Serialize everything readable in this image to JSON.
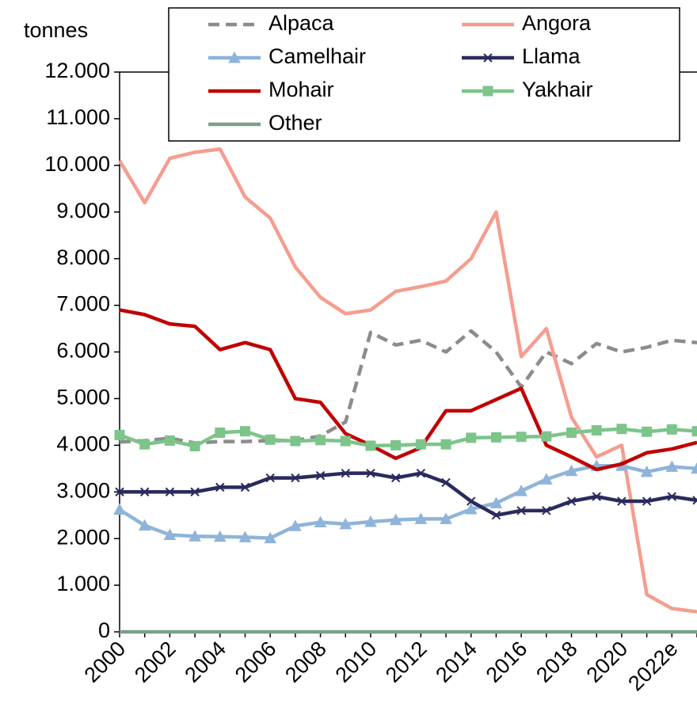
{
  "chart_data": {
    "type": "line",
    "y_label": "tonnes",
    "categories": [
      "2000",
      null,
      "2002",
      null,
      "2004",
      null,
      "2006",
      null,
      "2008",
      null,
      "2010",
      null,
      "2012",
      null,
      "2014",
      null,
      "2016",
      null,
      "2018",
      null,
      "2020",
      null,
      "2022e",
      null
    ],
    "ylim": [
      0,
      12000
    ],
    "yticks": [
      0,
      {
        "value": 1000,
        "label": "1.000"
      },
      {
        "value": 2000,
        "label": "2.000"
      },
      {
        "value": 3000,
        "label": "3.000"
      },
      {
        "value": 4000,
        "label": "4.000"
      },
      {
        "value": 5000,
        "label": "5.000"
      },
      {
        "value": 6000,
        "label": "6.000"
      },
      {
        "value": 7000,
        "label": "7.000"
      },
      {
        "value": 8000,
        "label": "8.000"
      },
      {
        "value": 9000,
        "label": "9.000"
      },
      {
        "value": 10000,
        "label": "10.000"
      },
      {
        "value": 11000,
        "label": "11.000"
      },
      {
        "value": 12000,
        "label": "12.000"
      }
    ],
    "grid": false,
    "legend": "top",
    "series": [
      {
        "name": "Alpaca",
        "color": "#8c8c8c",
        "dash": true,
        "marker": "none",
        "values": [
          4070,
          4100,
          4150,
          4050,
          4080,
          4080,
          4100,
          4100,
          4200,
          4500,
          6420,
          6150,
          6250,
          6000,
          6450,
          6000,
          5250,
          6000,
          5750,
          6180,
          6000,
          6100,
          6250,
          6200
        ]
      },
      {
        "name": "Angora",
        "color": "#f59d8f",
        "dash": false,
        "marker": "none",
        "values": [
          10100,
          9200,
          10150,
          10280,
          10350,
          9320,
          8870,
          7820,
          7170,
          6820,
          6900,
          7300,
          7400,
          7520,
          8000,
          9000,
          5900,
          6500,
          4600,
          3750,
          4000,
          800,
          500,
          430
        ]
      },
      {
        "name": "Camelhair",
        "color": "#8fb4d9",
        "dash": false,
        "marker": "triangle",
        "values": [
          2620,
          2280,
          2080,
          2050,
          2040,
          2030,
          2010,
          2270,
          2350,
          2310,
          2360,
          2400,
          2420,
          2420,
          2630,
          2760,
          3020,
          3270,
          3450,
          3560,
          3560,
          3430,
          3540,
          3500
        ]
      },
      {
        "name": "Llama",
        "color": "#2a2a5e",
        "dash": false,
        "marker": "x",
        "values": [
          3000,
          3000,
          3000,
          3000,
          3100,
          3100,
          3300,
          3300,
          3350,
          3400,
          3400,
          3300,
          3400,
          3200,
          2800,
          2500,
          2600,
          2600,
          2800,
          2900,
          2800,
          2800,
          2900,
          2820
        ]
      },
      {
        "name": "Mohair",
        "color": "#c00000",
        "dash": false,
        "marker": "none",
        "values": [
          6900,
          6800,
          6600,
          6550,
          6050,
          6200,
          6050,
          5000,
          4920,
          4250,
          4000,
          3720,
          3950,
          4740,
          4740,
          4980,
          5220,
          4000,
          3750,
          3480,
          3600,
          3840,
          3920,
          4060
        ]
      },
      {
        "name": "Yakhair",
        "color": "#7dc48a",
        "dash": false,
        "marker": "square",
        "values": [
          4220,
          4020,
          4100,
          3980,
          4270,
          4300,
          4120,
          4090,
          4110,
          4090,
          3990,
          4000,
          4020,
          4020,
          4160,
          4170,
          4180,
          4190,
          4270,
          4320,
          4350,
          4290,
          4340,
          4300
        ]
      },
      {
        "name": "Other",
        "color": "#7aa08a",
        "dash": false,
        "marker": "none",
        "values": [
          0,
          0,
          0,
          0,
          0,
          0,
          0,
          0,
          0,
          0,
          0,
          0,
          0,
          0,
          0,
          0,
          0,
          0,
          0,
          0,
          0,
          0,
          0,
          0
        ]
      }
    ]
  }
}
